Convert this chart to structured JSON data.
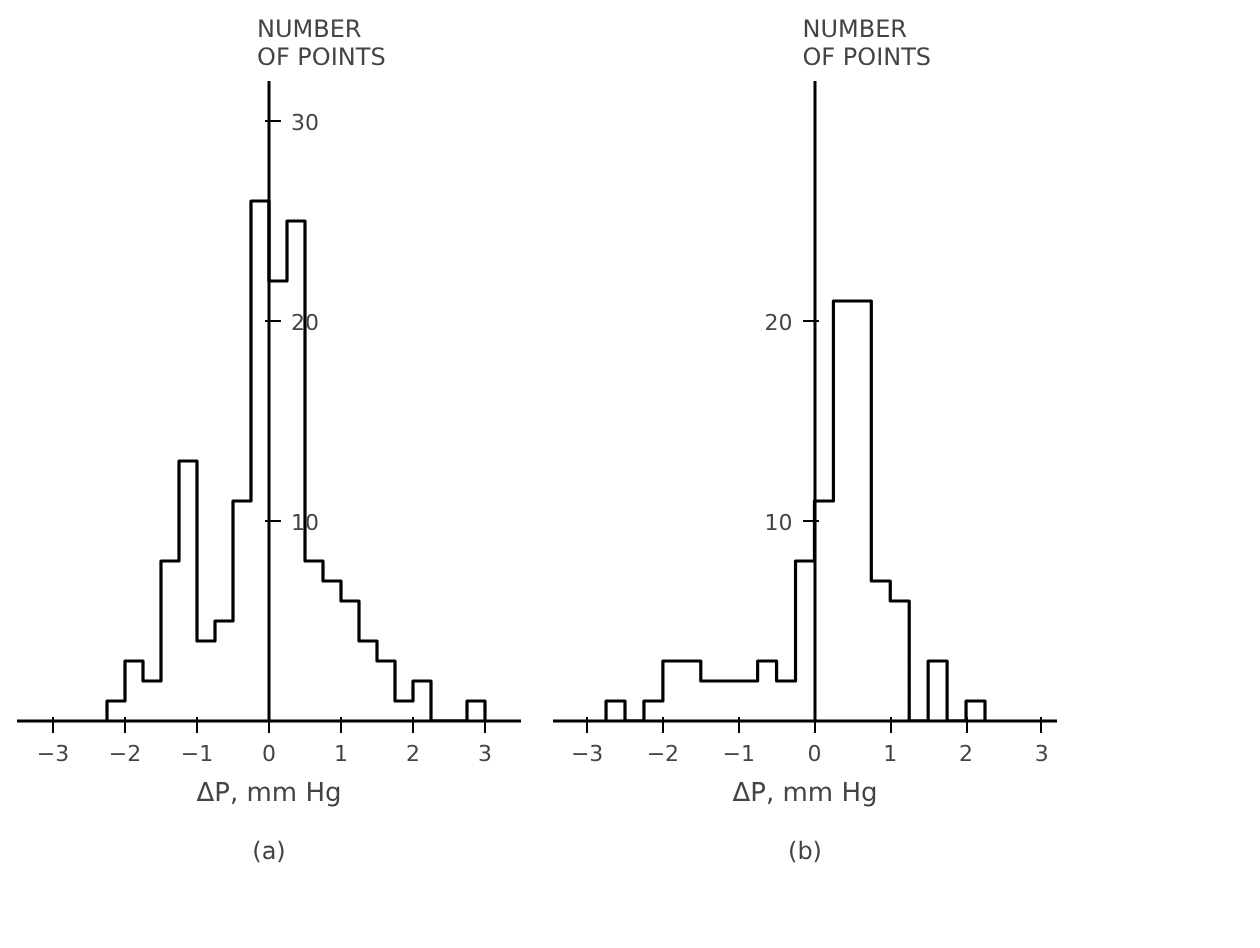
{
  "chart_data": [
    {
      "type": "histogram",
      "xlabel": "ΔP, mm Hg",
      "ylabel": "NUMBER\nOF POINTS",
      "annotations": [
        "(a)"
      ],
      "bins": [
        -2.25,
        -2.0,
        -1.75,
        -1.5,
        -1.25,
        -1.0,
        -0.75,
        -0.5,
        -0.25,
        0.0,
        0.25,
        0.5,
        0.75,
        1.0,
        1.25,
        1.5,
        1.75,
        2.0,
        2.25,
        2.5,
        2.75,
        3.0
      ],
      "values": [
        1,
        3,
        2,
        8,
        13,
        4,
        5,
        11,
        26,
        22,
        25,
        8,
        7,
        6,
        4,
        3,
        1,
        2,
        0,
        0,
        1
      ],
      "color": "#000000",
      "xlim": [
        -3.5,
        3.5
      ],
      "ylim": [
        0,
        32
      ],
      "xticks": [
        -3,
        -2,
        -1,
        0,
        1,
        2,
        3
      ],
      "yticks": [
        10,
        20,
        30
      ],
      "grid": false
    },
    {
      "type": "histogram",
      "xlabel": "ΔP, mm Hg",
      "ylabel": "NUMBER\nOF POINTS",
      "annotations": [
        "(b)"
      ],
      "bins": [
        -2.75,
        -2.5,
        -2.25,
        -2.0,
        -1.75,
        -1.5,
        -1.25,
        -1.0,
        -0.75,
        -0.5,
        -0.25,
        0.0,
        0.25,
        0.5,
        0.75,
        1.0,
        1.25,
        1.5,
        1.75,
        2.0,
        2.25
      ],
      "values": [
        1,
        0,
        1,
        3,
        3,
        2,
        2,
        2,
        3,
        2,
        8,
        11,
        21,
        21,
        7,
        6,
        0,
        3,
        0,
        1
      ],
      "color": "#000000",
      "xlim": [
        -3.45,
        3.2
      ],
      "ylim": [
        0,
        32
      ],
      "xticks": [
        -3,
        -2,
        -1,
        0,
        1,
        2,
        3
      ],
      "yticks": [
        10,
        20
      ],
      "grid": false
    }
  ]
}
